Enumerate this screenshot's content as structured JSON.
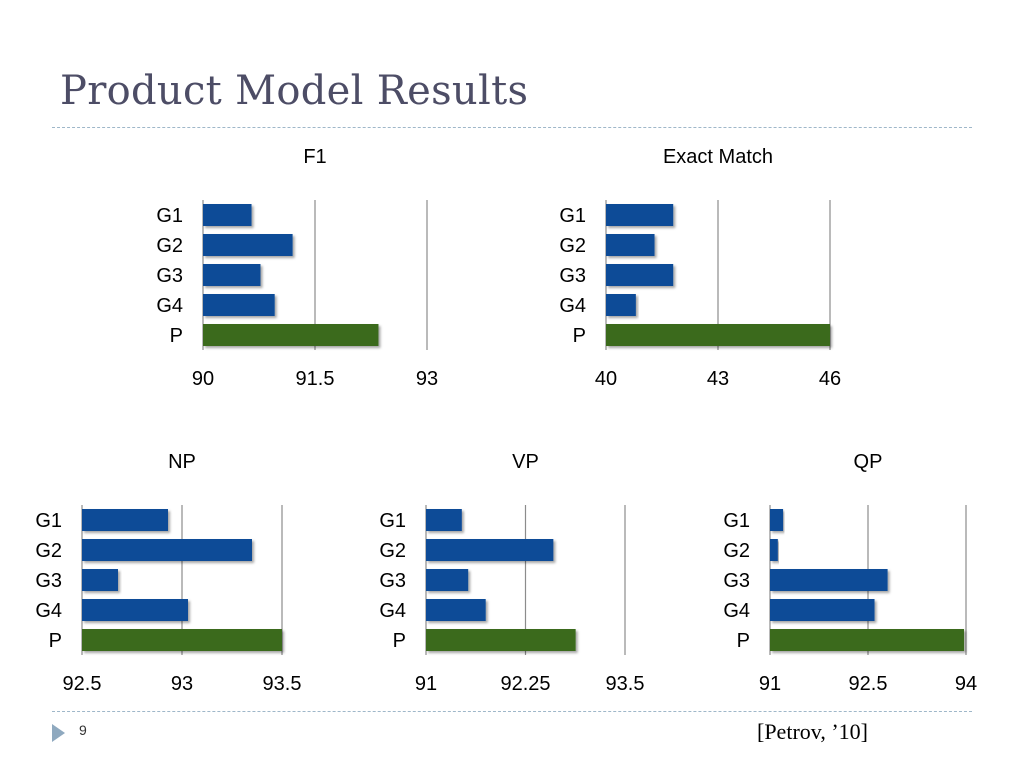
{
  "slide": {
    "title": "Product Model Results",
    "number": "9",
    "citation": "[Petrov, ’10]"
  },
  "colors": {
    "grammar_bar": "#0f4c97",
    "product_bar": "#3a6a1e",
    "gridline": "#8c8c8c",
    "title_text": "#4d4d66",
    "rule": "#9fb7c9"
  },
  "chart_data": [
    {
      "type": "bar",
      "orientation": "horizontal",
      "title": "F1",
      "categories": [
        "G1",
        "G2",
        "G3",
        "G4",
        "P"
      ],
      "values": [
        90.65,
        91.2,
        90.77,
        90.96,
        92.35
      ],
      "xlim": [
        90,
        93
      ],
      "ticks": [
        "90",
        "91.5",
        "93"
      ],
      "tick_values": [
        90,
        91.5,
        93
      ],
      "grid": true
    },
    {
      "type": "bar",
      "orientation": "horizontal",
      "title": "Exact Match",
      "categories": [
        "G1",
        "G2",
        "G3",
        "G4",
        "P"
      ],
      "values": [
        41.8,
        41.3,
        41.8,
        40.8,
        46.0
      ],
      "xlim": [
        40,
        46
      ],
      "ticks": [
        "40",
        "43",
        "46"
      ],
      "tick_values": [
        40,
        43,
        46
      ],
      "grid": true
    },
    {
      "type": "bar",
      "orientation": "horizontal",
      "title": "NP",
      "categories": [
        "G1",
        "G2",
        "G3",
        "G4",
        "P"
      ],
      "values": [
        92.93,
        93.35,
        92.68,
        93.03,
        93.5
      ],
      "xlim": [
        92.5,
        93.5
      ],
      "ticks": [
        "92.5",
        "93",
        "93.5"
      ],
      "tick_values": [
        92.5,
        93,
        93.5
      ],
      "grid": true
    },
    {
      "type": "bar",
      "orientation": "horizontal",
      "title": "VP",
      "categories": [
        "G1",
        "G2",
        "G3",
        "G4",
        "P"
      ],
      "values": [
        91.45,
        92.6,
        91.53,
        91.75,
        92.88
      ],
      "xlim": [
        91,
        93.5
      ],
      "ticks": [
        "91",
        "92.25",
        "93.5"
      ],
      "tick_values": [
        91,
        92.25,
        93.5
      ],
      "grid": true
    },
    {
      "type": "bar",
      "orientation": "horizontal",
      "title": "QP",
      "categories": [
        "G1",
        "G2",
        "G3",
        "G4",
        "P"
      ],
      "values": [
        91.2,
        91.12,
        92.8,
        92.6,
        93.97
      ],
      "xlim": [
        91,
        94
      ],
      "ticks": [
        "91",
        "92.5",
        "94"
      ],
      "tick_values": [
        91,
        92.5,
        94
      ],
      "grid": true
    }
  ]
}
